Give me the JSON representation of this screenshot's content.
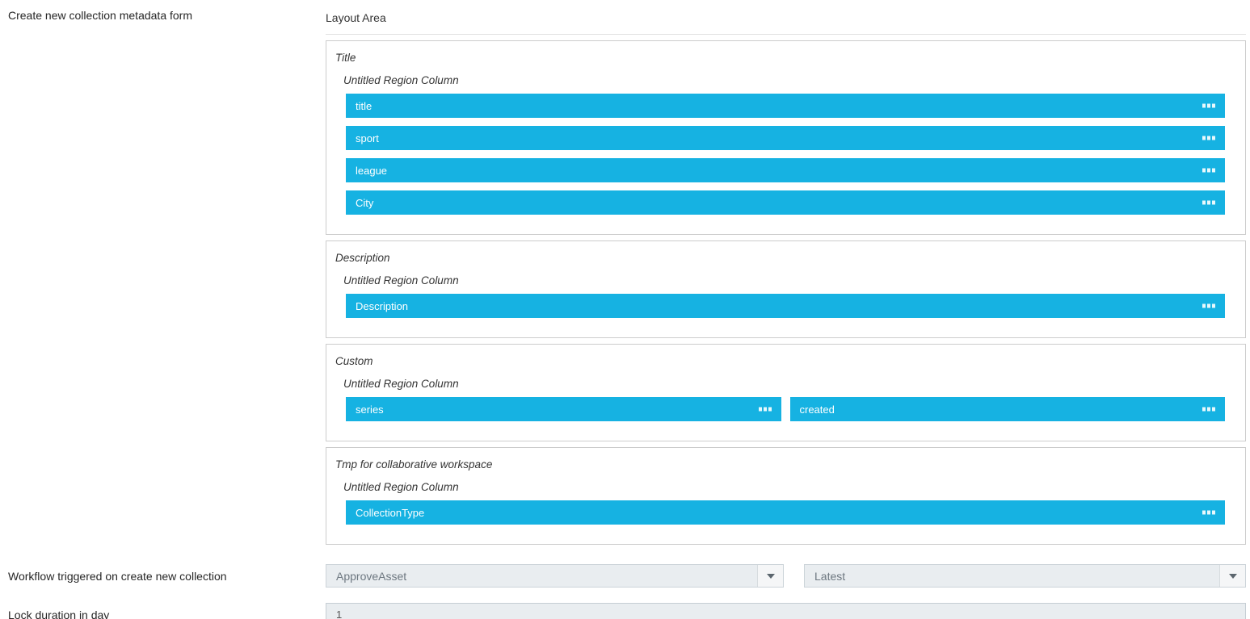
{
  "page": {
    "form_label": "Create new collection metadata form",
    "workflow_label": "Workflow triggered on create new collection",
    "lock_label": "Lock duration in day"
  },
  "layout_area": {
    "title": "Layout Area",
    "sections": [
      {
        "title": "Title",
        "region": "Untitled Region Column",
        "rows": [
          [
            "title"
          ],
          [
            "sport"
          ],
          [
            "league"
          ],
          [
            "City"
          ]
        ]
      },
      {
        "title": "Description",
        "region": "Untitled Region Column",
        "rows": [
          [
            "Description"
          ]
        ]
      },
      {
        "title": "Custom",
        "region": "Untitled Region Column",
        "rows": [
          [
            "series",
            "created"
          ]
        ]
      },
      {
        "title": "Tmp for collaborative workspace",
        "region": "Untitled Region Column",
        "rows": [
          [
            "CollectionType"
          ]
        ]
      }
    ]
  },
  "workflow": {
    "selected": "ApproveAsset",
    "version_selected": "Latest"
  },
  "lock": {
    "value": "1"
  },
  "icons": {
    "drag_handle": "drag-handle-icon",
    "dropdown_arrow": "caret-down-icon"
  },
  "colors": {
    "field_bar": "#16b2e2",
    "field_bar_text": "#ffffff",
    "control_background": "#e9edf0",
    "section_border": "#cccccc"
  }
}
